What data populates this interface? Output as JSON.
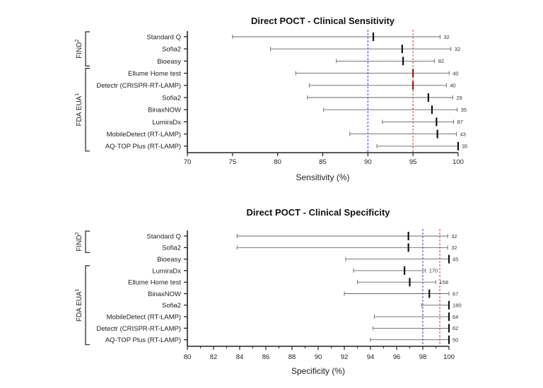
{
  "chart_data": [
    {
      "type": "forest",
      "title": "Direct POCT - Clinical Sensitivity",
      "xlabel": "Sensitivity (%)",
      "xlim": [
        70,
        100
      ],
      "xticks": [
        70,
        75,
        80,
        85,
        90,
        95,
        100
      ],
      "reference_lines": [
        {
          "value": 90,
          "color": "#2a3fd6",
          "style": "dashed"
        },
        {
          "value": 95,
          "color": "#d63a3a",
          "style": "dashed"
        }
      ],
      "groups": [
        {
          "label": "FIND",
          "superscript": "2",
          "rows": [
            0,
            2
          ]
        },
        {
          "label": "FDA EUA",
          "superscript": "1",
          "rows": [
            3,
            9
          ]
        }
      ],
      "rows": [
        {
          "label": "Standard Q",
          "point": 90.6,
          "low": 75.0,
          "high": 98.0,
          "n": "32"
        },
        {
          "label": "Sofia2",
          "point": 93.8,
          "low": 79.2,
          "high": 99.2,
          "n": "32"
        },
        {
          "label": "Bioeasy",
          "point": 93.9,
          "low": 86.5,
          "high": 97.4,
          "n": "82"
        },
        {
          "label": "Ellume Home test",
          "point": 95.0,
          "low": 82.0,
          "high": 99.0,
          "n": "40",
          "highlight": true
        },
        {
          "label": "Detectr (CRISPR-RT-LAMP)",
          "point": 95.0,
          "low": 83.5,
          "high": 98.7,
          "n": "40",
          "highlight": true
        },
        {
          "label": "Sofia2",
          "point": 96.7,
          "low": 83.3,
          "high": 99.4,
          "n": "29"
        },
        {
          "label": "BinaxNOW",
          "point": 97.1,
          "low": 85.1,
          "high": 99.9,
          "n": "35"
        },
        {
          "label": "LumiraDx",
          "point": 97.6,
          "low": 91.6,
          "high": 99.5,
          "n": "87"
        },
        {
          "label": "MobileDetect (RT-LAMP)",
          "point": 97.7,
          "low": 88.0,
          "high": 99.8,
          "n": "43"
        },
        {
          "label": "AQ-TOP Plus (RT-LAMP)",
          "point": 100.0,
          "low": 91.0,
          "high": 100.0,
          "n": "35"
        }
      ]
    },
    {
      "type": "forest",
      "title": "Direct POCT - Clinical Specificity",
      "xlabel": "Specificity (%)",
      "xlim": [
        80,
        100
      ],
      "xticks": [
        80,
        82,
        84,
        86,
        88,
        90,
        92,
        94,
        96,
        98,
        100
      ],
      "reference_lines": [
        {
          "value": 98,
          "color": "#2a3fd6",
          "style": "dashed"
        },
        {
          "value": 99.3,
          "color": "#d63a3a",
          "style": "dashed"
        }
      ],
      "groups": [
        {
          "label": "FIND",
          "superscript": "2",
          "rows": [
            0,
            1
          ]
        },
        {
          "label": "FDA EUA",
          "superscript": "1",
          "rows": [
            3,
            9
          ]
        }
      ],
      "rows": [
        {
          "label": "Standard Q",
          "point": 96.9,
          "low": 83.8,
          "high": 99.9,
          "n": "32"
        },
        {
          "label": "Sofia2",
          "point": 96.9,
          "low": 83.8,
          "high": 99.9,
          "n": "32"
        },
        {
          "label": "Bioeasy",
          "point": 100.0,
          "low": 92.1,
          "high": 100.0,
          "n": "45"
        },
        {
          "label": "LumiraDx",
          "point": 96.6,
          "low": 92.7,
          "high": 98.2,
          "n": "170"
        },
        {
          "label": "Ellume Home test",
          "point": 97.0,
          "low": 93.0,
          "high": 99.0,
          "n": "158"
        },
        {
          "label": "BinaxNOW",
          "point": 98.5,
          "low": 92.0,
          "high": 100.0,
          "n": "67"
        },
        {
          "label": "Sofia2",
          "point": 100.0,
          "low": 97.9,
          "high": 100.0,
          "n": "180"
        },
        {
          "label": "MobileDetect (RT-LAMP)",
          "point": 100.0,
          "low": 94.3,
          "high": 100.0,
          "n": "64"
        },
        {
          "label": "Detectr (CRISPR-RT-LAMP)",
          "point": 100.0,
          "low": 94.2,
          "high": 100.0,
          "n": "62"
        },
        {
          "label": "AQ-TOP Plus (RT-LAMP)",
          "point": 100.0,
          "low": 94.0,
          "high": 100.0,
          "n": "50"
        }
      ]
    }
  ]
}
